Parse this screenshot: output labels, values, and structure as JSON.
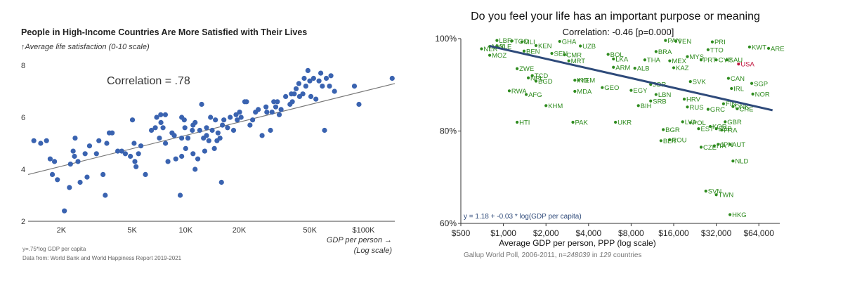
{
  "chart_data": [
    {
      "type": "scatter",
      "title": "People in High-Income Countries Are More Satisfied with Their Lives",
      "subtitle": "↑Average life satisfaction (0-10 scale)",
      "annotation": "Correlation = .78",
      "xlabel_line1": "GDP per person →",
      "xlabel_line2": "(Log scale)",
      "x_scale": "log",
      "xlim": [
        1300,
        150000
      ],
      "ylim": [
        2,
        8
      ],
      "x_ticks": [
        {
          "value": 2000,
          "label": "2K"
        },
        {
          "value": 5000,
          "label": "5K"
        },
        {
          "value": 10000,
          "label": "10K"
        },
        {
          "value": 20000,
          "label": "20K"
        },
        {
          "value": 50000,
          "label": "50K"
        },
        {
          "value": 100000,
          "label": "$100K"
        }
      ],
      "y_ticks": [
        {
          "value": 2,
          "label": "2"
        },
        {
          "value": 4,
          "label": "4"
        },
        {
          "value": 6,
          "label": "6"
        },
        {
          "value": 8,
          "label": "8"
        }
      ],
      "footnote_formula": "y=.75*log GDP per capita",
      "footnote_source": "Data from: World Bank and World Happiness Report 2019-2021",
      "trend": {
        "x1": 1300,
        "y1": 3.8,
        "x2": 150000,
        "y2": 7.3
      },
      "point_color": "#3a63b0",
      "line_color": "#777777",
      "points": [
        [
          1400,
          5.1
        ],
        [
          1530,
          5.0
        ],
        [
          1650,
          5.1
        ],
        [
          1730,
          4.4
        ],
        [
          1780,
          3.8
        ],
        [
          1830,
          4.3
        ],
        [
          1900,
          3.6
        ],
        [
          2080,
          2.4
        ],
        [
          2220,
          3.3
        ],
        [
          2250,
          4.2
        ],
        [
          2330,
          4.7
        ],
        [
          2370,
          4.5
        ],
        [
          2390,
          5.2
        ],
        [
          2480,
          4.3
        ],
        [
          2550,
          3.5
        ],
        [
          2720,
          4.6
        ],
        [
          2790,
          3.7
        ],
        [
          2880,
          4.9
        ],
        [
          3150,
          4.6
        ],
        [
          3250,
          5.1
        ],
        [
          3430,
          3.8
        ],
        [
          3530,
          3.0
        ],
        [
          3600,
          5.0
        ],
        [
          3720,
          5.4
        ],
        [
          3860,
          5.4
        ],
        [
          4150,
          4.7
        ],
        [
          4370,
          4.7
        ],
        [
          4580,
          4.6
        ],
        [
          4890,
          4.5
        ],
        [
          5020,
          5.9
        ],
        [
          5130,
          5.0
        ],
        [
          5180,
          4.3
        ],
        [
          5260,
          4.1
        ],
        [
          5430,
          4.6
        ],
        [
          5600,
          4.9
        ],
        [
          5940,
          3.8
        ],
        [
          6420,
          5.5
        ],
        [
          6750,
          5.6
        ],
        [
          6870,
          6.0
        ],
        [
          7120,
          5.2
        ],
        [
          7240,
          6.1
        ],
        [
          7260,
          5.8
        ],
        [
          7460,
          5.6
        ],
        [
          7690,
          6.1
        ],
        [
          7700,
          5.0
        ],
        [
          7950,
          4.3
        ],
        [
          8380,
          5.4
        ],
        [
          8630,
          5.3
        ],
        [
          8800,
          4.4
        ],
        [
          9320,
          3.0
        ],
        [
          9500,
          6.0
        ],
        [
          9500,
          5.2
        ],
        [
          9500,
          4.5
        ],
        [
          9820,
          5.9
        ],
        [
          9900,
          5.6
        ],
        [
          10000,
          4.8
        ],
        [
          10300,
          5.2
        ],
        [
          10900,
          5.5
        ],
        [
          11000,
          5.7
        ],
        [
          11000,
          4.6
        ],
        [
          11300,
          5.8
        ],
        [
          11300,
          4.0
        ],
        [
          11700,
          4.4
        ],
        [
          12000,
          5.5
        ],
        [
          12300,
          6.5
        ],
        [
          12600,
          5.2
        ],
        [
          12800,
          4.7
        ],
        [
          13100,
          5.6
        ],
        [
          13100,
          5.3
        ],
        [
          13500,
          5.1
        ],
        [
          13800,
          6.0
        ],
        [
          14100,
          5.5
        ],
        [
          14500,
          4.8
        ],
        [
          14700,
          5.9
        ],
        [
          15000,
          5.1
        ],
        [
          15200,
          5.4
        ],
        [
          15600,
          5.2
        ],
        [
          15900,
          3.5
        ],
        [
          16100,
          5.7
        ],
        [
          16400,
          5.9
        ],
        [
          17200,
          5.6
        ],
        [
          17800,
          6.0
        ],
        [
          18600,
          5.5
        ],
        [
          19200,
          6.1
        ],
        [
          19500,
          5.9
        ],
        [
          20100,
          6.2
        ],
        [
          20500,
          6.0
        ],
        [
          21500,
          6.6
        ],
        [
          22000,
          6.6
        ],
        [
          23000,
          5.7
        ],
        [
          23800,
          5.9
        ],
        [
          24700,
          6.2
        ],
        [
          25600,
          6.3
        ],
        [
          26900,
          5.3
        ],
        [
          28300,
          6.4
        ],
        [
          28600,
          6.2
        ],
        [
          30000,
          5.5
        ],
        [
          30600,
          6.2
        ],
        [
          31300,
          6.6
        ],
        [
          32100,
          6.4
        ],
        [
          32800,
          6.6
        ],
        [
          33600,
          6.1
        ],
        [
          34400,
          6.3
        ],
        [
          36500,
          6.8
        ],
        [
          38600,
          6.5
        ],
        [
          39300,
          6.9
        ],
        [
          39800,
          6.6
        ],
        [
          40800,
          6.9
        ],
        [
          41800,
          7.1
        ],
        [
          43300,
          7.3
        ],
        [
          43700,
          6.8
        ],
        [
          45600,
          6.9
        ],
        [
          46400,
          7.5
        ],
        [
          47400,
          7.2
        ],
        [
          48700,
          7.8
        ],
        [
          49900,
          7.4
        ],
        [
          50600,
          6.8
        ],
        [
          52400,
          7.5
        ],
        [
          54000,
          6.7
        ],
        [
          56200,
          7.4
        ],
        [
          57500,
          7.7
        ],
        [
          58700,
          7.2
        ],
        [
          60400,
          5.5
        ],
        [
          61800,
          7.5
        ],
        [
          64400,
          7.2
        ],
        [
          65600,
          7.6
        ],
        [
          68700,
          7.0
        ],
        [
          88900,
          7.2
        ],
        [
          94300,
          6.5
        ],
        [
          145000,
          7.5
        ]
      ]
    },
    {
      "type": "scatter",
      "title": "Do you feel your life has an important purpose or meaning",
      "annotation": "Correlation: -0.46 [p=0.000]",
      "xlabel": "Average GDP per person, PPP (log scale)",
      "x_scale": "log",
      "xlim": [
        500,
        90000
      ],
      "ylim": [
        60,
        100
      ],
      "x_ticks": [
        {
          "value": 500,
          "label": "$500"
        },
        {
          "value": 1000,
          "label": "$1,000"
        },
        {
          "value": 2000,
          "label": "$2,000"
        },
        {
          "value": 4000,
          "label": "$4,000"
        },
        {
          "value": 8000,
          "label": "$8,000"
        },
        {
          "value": 16000,
          "label": "$16,000"
        },
        {
          "value": 32000,
          "label": "$32,000"
        },
        {
          "value": 64000,
          "label": "$64,000"
        }
      ],
      "y_ticks": [
        {
          "value": 60,
          "label": "60%"
        },
        {
          "value": 80,
          "label": "80%"
        },
        {
          "value": 100,
          "label": "100%"
        }
      ],
      "regression_label": "y = 1.18 + -0.03 * log(GDP per capita)",
      "footnote_prefix": "Gallup World Poll, 2006-2011, n=",
      "footnote_n": "248039",
      "footnote_mid": " in ",
      "footnote_countries": "129",
      "footnote_suffix": " countries",
      "trend": {
        "x1": 800,
        "y1": 98.4,
        "x2": 80000,
        "y2": 84.5
      },
      "point_color": "#2e8b1e",
      "highlight_color": "#c0143c",
      "line_color": "#2e4a7a",
      "points": [
        {
          "label": "LBR",
          "x": 900,
          "y": 99.6
        },
        {
          "label": "TGO",
          "x": 1150,
          "y": 99.5
        },
        {
          "label": "MLI",
          "x": 1350,
          "y": 99.3
        },
        {
          "label": "MWI",
          "x": 800,
          "y": 98.3
        },
        {
          "label": "SLE",
          "x": 900,
          "y": 98.3
        },
        {
          "label": "NER",
          "x": 700,
          "y": 97.8
        },
        {
          "label": "MOZ",
          "x": 800,
          "y": 96.4
        },
        {
          "label": "BEN",
          "x": 1400,
          "y": 97.3
        },
        {
          "label": "NPL",
          "x": 1500,
          "y": 91.5
        },
        {
          "label": "RWA",
          "x": 1100,
          "y": 88.7
        },
        {
          "label": "AFG",
          "x": 1450,
          "y": 87.9
        },
        {
          "label": "HTI",
          "x": 1250,
          "y": 81.9
        },
        {
          "label": "KHM",
          "x": 2000,
          "y": 85.5
        },
        {
          "label": "ZWE",
          "x": 1250,
          "y": 93.5
        },
        {
          "label": "TCD",
          "x": 1600,
          "y": 92.0
        },
        {
          "label": "BGD",
          "x": 1700,
          "y": 90.8
        },
        {
          "label": "KEN",
          "x": 1700,
          "y": 98.5
        },
        {
          "label": "GHA",
          "x": 2500,
          "y": 99.4
        },
        {
          "label": "SEN",
          "x": 2200,
          "y": 96.8
        },
        {
          "label": "CMR",
          "x": 2700,
          "y": 96.5
        },
        {
          "label": "MRT",
          "x": 2900,
          "y": 95.2
        },
        {
          "label": "IND",
          "x": 3200,
          "y": 91.0
        },
        {
          "label": "YEM",
          "x": 3400,
          "y": 91.0
        },
        {
          "label": "PAK",
          "x": 3100,
          "y": 81.9
        },
        {
          "label": "MDA",
          "x": 3200,
          "y": 88.6
        },
        {
          "label": "GEO",
          "x": 5000,
          "y": 89.4
        },
        {
          "label": "ARM",
          "x": 6000,
          "y": 93.8
        },
        {
          "label": "ALB",
          "x": 8500,
          "y": 93.6
        },
        {
          "label": "LKA",
          "x": 6000,
          "y": 95.6
        },
        {
          "label": "BOL",
          "x": 5500,
          "y": 96.6
        },
        {
          "label": "UZB",
          "x": 3500,
          "y": 98.4
        },
        {
          "label": "JOR",
          "x": 11000,
          "y": 90.1
        },
        {
          "label": "EGY",
          "x": 8000,
          "y": 88.8
        },
        {
          "label": "LBN",
          "x": 12000,
          "y": 87.9
        },
        {
          "label": "BIH",
          "x": 9000,
          "y": 85.5
        },
        {
          "label": "SRB",
          "x": 11000,
          "y": 86.5
        },
        {
          "label": "UKR",
          "x": 6200,
          "y": 81.9
        },
        {
          "label": "BGR",
          "x": 13500,
          "y": 80.3
        },
        {
          "label": "BLR",
          "x": 13000,
          "y": 77.9
        },
        {
          "label": "ROU",
          "x": 15000,
          "y": 78.1
        },
        {
          "label": "HRV",
          "x": 19000,
          "y": 86.9
        },
        {
          "label": "RUS",
          "x": 20000,
          "y": 85.2
        },
        {
          "label": "LVA",
          "x": 18500,
          "y": 82.0
        },
        {
          "label": "POL",
          "x": 21000,
          "y": 81.8
        },
        {
          "label": "EST",
          "x": 24000,
          "y": 80.5
        },
        {
          "label": "SVK",
          "x": 21000,
          "y": 90.7
        },
        {
          "label": "THA",
          "x": 10000,
          "y": 95.4
        },
        {
          "label": "MEX",
          "x": 15000,
          "y": 95.2
        },
        {
          "label": "MYS",
          "x": 20000,
          "y": 96.1
        },
        {
          "label": "KAZ",
          "x": 16000,
          "y": 93.7
        },
        {
          "label": "BRA",
          "x": 12000,
          "y": 97.2
        },
        {
          "label": "PAN",
          "x": 14000,
          "y": 99.6
        },
        {
          "label": "VEN",
          "x": 16500,
          "y": 99.5
        },
        {
          "label": "PRI",
          "x": 30000,
          "y": 99.3
        },
        {
          "label": "TTO",
          "x": 28000,
          "y": 97.6
        },
        {
          "label": "PRT",
          "x": 25000,
          "y": 95.4
        },
        {
          "label": "CYP",
          "x": 32000,
          "y": 95.4
        },
        {
          "label": "SAU",
          "x": 38000,
          "y": 95.4
        },
        {
          "label": "KWT",
          "x": 55000,
          "y": 98.2
        },
        {
          "label": "ARE",
          "x": 75000,
          "y": 97.9
        },
        {
          "label": "USA",
          "x": 46000,
          "y": 94.5,
          "highlight": true
        },
        {
          "label": "CAN",
          "x": 39000,
          "y": 91.4
        },
        {
          "label": "SGP",
          "x": 57000,
          "y": 90.3
        },
        {
          "label": "IRL",
          "x": 41000,
          "y": 89.2
        },
        {
          "label": "NOR",
          "x": 58000,
          "y": 88.0
        },
        {
          "label": "DNK",
          "x": 42000,
          "y": 85.3
        },
        {
          "label": "FIN",
          "x": 36000,
          "y": 85.9
        },
        {
          "label": "CHE",
          "x": 45000,
          "y": 84.8
        },
        {
          "label": "GRC",
          "x": 28000,
          "y": 84.7
        },
        {
          "label": "GBR",
          "x": 37000,
          "y": 82.0
        },
        {
          "label": "ESP",
          "x": 32000,
          "y": 80.5
        },
        {
          "label": "KOR",
          "x": 29000,
          "y": 81.0
        },
        {
          "label": "FRA",
          "x": 35000,
          "y": 80.2
        },
        {
          "label": "CZE",
          "x": 25000,
          "y": 76.5
        },
        {
          "label": "JPN",
          "x": 33000,
          "y": 77.1
        },
        {
          "label": "AUT",
          "x": 40000,
          "y": 77.1
        },
        {
          "label": "ITA",
          "x": 31000,
          "y": 76.8
        },
        {
          "label": "NLD",
          "x": 42000,
          "y": 73.5
        },
        {
          "label": "SVN",
          "x": 27000,
          "y": 67.0
        },
        {
          "label": "TWN",
          "x": 32000,
          "y": 66.2
        },
        {
          "label": "HKG",
          "x": 40000,
          "y": 61.9
        }
      ]
    }
  ]
}
